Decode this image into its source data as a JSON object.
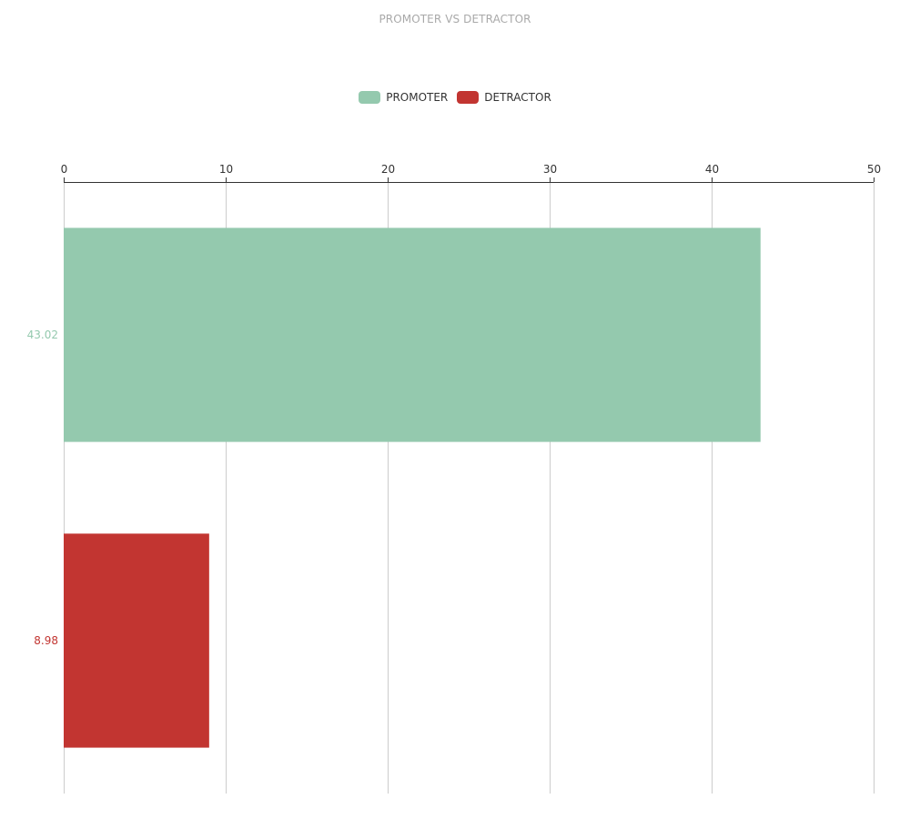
{
  "chart_data": {
    "type": "bar",
    "orientation": "horizontal",
    "title": "PROMOTER VS DETRACTOR",
    "xlim": [
      0,
      50
    ],
    "xticks": [
      0,
      10,
      20,
      30,
      40,
      50
    ],
    "grid": true,
    "legend_position": "top-center",
    "x_axis_position": "top",
    "series": [
      {
        "name": "PROMOTER",
        "value": 43.02,
        "label": "43.02",
        "color": "#94c9ae"
      },
      {
        "name": "DETRACTOR",
        "value": 8.98,
        "label": "8.98",
        "color": "#c23531"
      }
    ]
  }
}
